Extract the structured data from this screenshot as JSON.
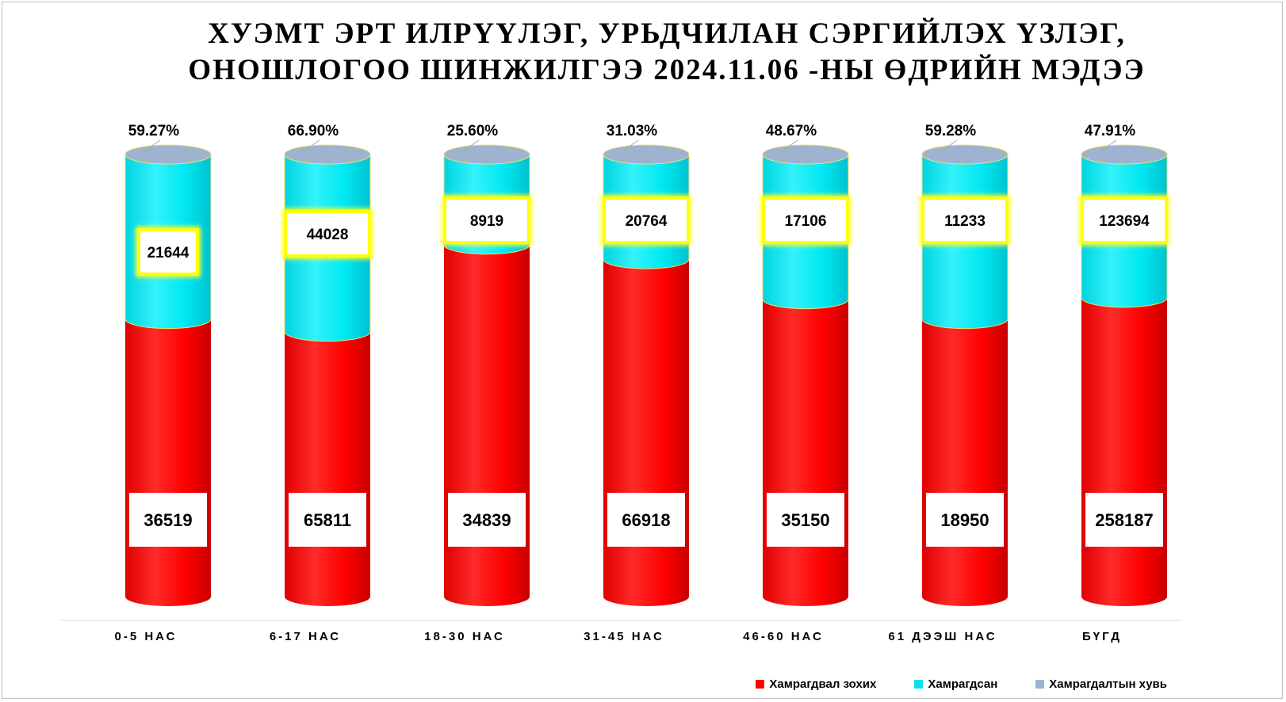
{
  "title": {
    "line1": "ХУЭМТ ЭРТ ИЛРҮҮЛЭГ, УРЬДЧИЛАН СЭРГИЙЛЭХ ҮЗЛЭГ,",
    "line2": "ОНОШЛОГОО ШИНЖИЛГЭЭ 2024.11.06 -НЫ ӨДРИЙН МЭДЭЭ"
  },
  "legend": {
    "eligible": "Хамрагдвал зохих",
    "covered": "Хамрагдсан",
    "percent": "Хамрагдалтын хувь"
  },
  "colors": {
    "eligible": "#ff0000",
    "covered": "#00e5f0",
    "percent": "#9db3cf",
    "highlight": "#ffff33"
  },
  "chart_data": {
    "type": "bar",
    "categories": [
      "0-5 НАС",
      "6-17 НАС",
      "18-30 НАС",
      "31-45 НАС",
      "46-60 НАС",
      "61 ДЭЭШ НАС",
      "БҮГД"
    ],
    "series": [
      {
        "name": "Хамрагдвал зохих",
        "values": [
          36519,
          65811,
          34839,
          66918,
          35150,
          18950,
          258187
        ]
      },
      {
        "name": "Хамрагдсан",
        "values": [
          21644,
          44028,
          8919,
          20764,
          17106,
          11233,
          123694
        ]
      },
      {
        "name": "Хамрагдалтын хувь",
        "values": [
          59.27,
          66.9,
          25.6,
          31.03,
          48.67,
          59.28,
          47.91
        ]
      }
    ],
    "percent_labels": [
      "59.27%",
      "66.90%",
      "25.60%",
      "31.03%",
      "48.67%",
      "59.28%",
      "47.91%"
    ],
    "stacked": true,
    "grid": false,
    "legend_position": "bottom-right"
  }
}
